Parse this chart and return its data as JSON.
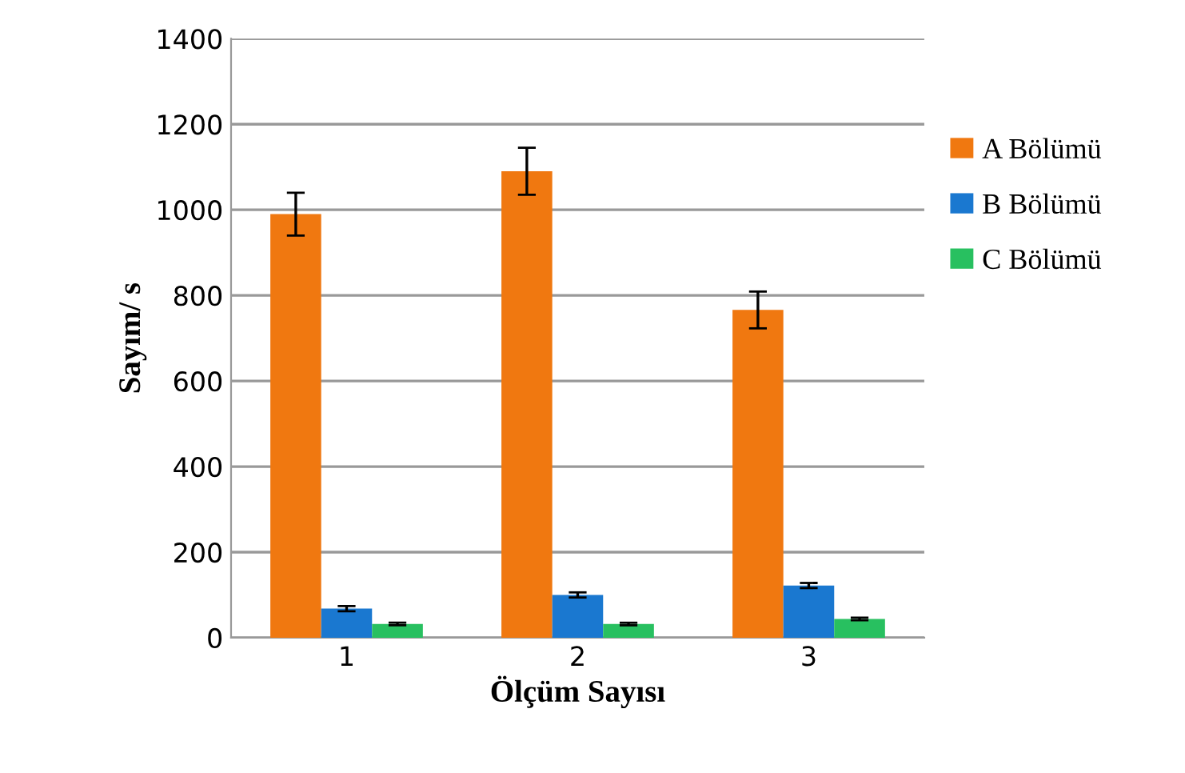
{
  "chart_data": {
    "type": "bar",
    "xlabel": "Ölçüm Sayısı",
    "ylabel": "Sayım/ s",
    "categories": [
      "1",
      "2",
      "3"
    ],
    "series": [
      {
        "name": "A Bölümü",
        "color": "#f07810",
        "values": [
          990,
          1090,
          766
        ],
        "errors": [
          50,
          55,
          43
        ]
      },
      {
        "name": "B Bölümü",
        "color": "#1a78d0",
        "values": [
          68,
          100,
          122
        ],
        "errors": [
          6,
          6,
          6
        ]
      },
      {
        "name": "C Bölümü",
        "color": "#28c060",
        "values": [
          32,
          32,
          44
        ],
        "errors": [
          3,
          3,
          3
        ]
      }
    ],
    "ylim": [
      0,
      1400
    ],
    "yticks": [
      0,
      200,
      400,
      600,
      800,
      1000,
      1200,
      1400
    ],
    "grid": "y",
    "legend": "right"
  }
}
